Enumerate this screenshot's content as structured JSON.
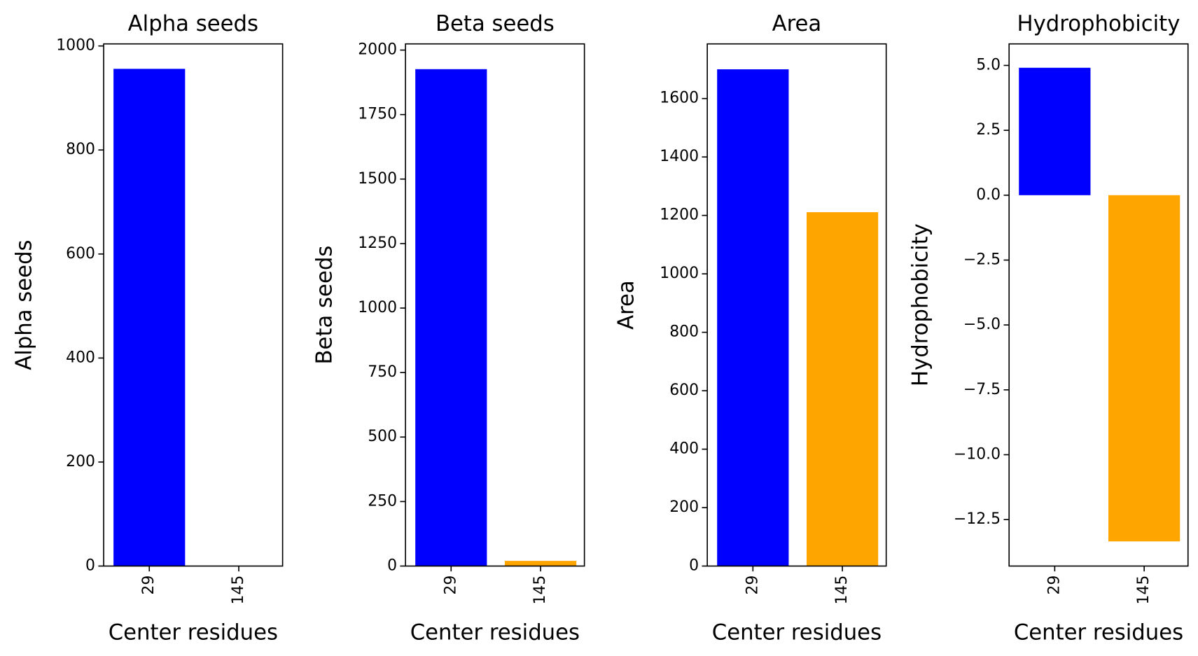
{
  "chart_data": [
    {
      "type": "bar",
      "title": "Alpha seeds",
      "xlabel": "Center residues",
      "ylabel": "Alpha seeds",
      "categories": [
        "29",
        "145"
      ],
      "values": [
        956,
        0
      ],
      "colors": [
        "#0000ff",
        "#ffa500"
      ],
      "ylim": [
        0,
        1004
      ],
      "yticks": [
        0,
        200,
        400,
        600,
        800,
        1000
      ]
    },
    {
      "type": "bar",
      "title": "Beta seeds",
      "xlabel": "Center residues",
      "ylabel": "Beta seeds",
      "categories": [
        "29",
        "145"
      ],
      "values": [
        1926,
        20
      ],
      "colors": [
        "#0000ff",
        "#ffa500"
      ],
      "ylim": [
        0,
        2024
      ],
      "yticks": [
        0,
        250,
        500,
        750,
        1000,
        1250,
        1500,
        1750,
        2000
      ]
    },
    {
      "type": "bar",
      "title": "Area",
      "xlabel": "Center residues",
      "ylabel": "Area",
      "categories": [
        "29",
        "145"
      ],
      "values": [
        1700,
        1211
      ],
      "colors": [
        "#0000ff",
        "#ffa500"
      ],
      "ylim": [
        0,
        1787
      ],
      "yticks": [
        0,
        200,
        400,
        600,
        800,
        1000,
        1200,
        1400,
        1600
      ]
    },
    {
      "type": "bar",
      "title": "Hydrophobicity",
      "xlabel": "Center residues",
      "ylabel": "Hydrophobicity",
      "categories": [
        "29",
        "145"
      ],
      "values": [
        4.91,
        -13.34
      ],
      "colors": [
        "#0000ff",
        "#ffa500"
      ],
      "ylim": [
        -14.29,
        5.83
      ],
      "yticks": [
        {
          "value": 5,
          "label": "5.0"
        },
        {
          "value": 2.5,
          "label": "2.5"
        },
        {
          "value": 0,
          "label": "0.0"
        },
        {
          "value": -2.5,
          "label": "−2.5"
        },
        {
          "value": -5,
          "label": "−5.0"
        },
        {
          "value": -7.5,
          "label": "−7.5"
        },
        {
          "value": -10,
          "label": "−10.0"
        },
        {
          "value": -12.5,
          "label": "−12.5"
        }
      ]
    }
  ]
}
